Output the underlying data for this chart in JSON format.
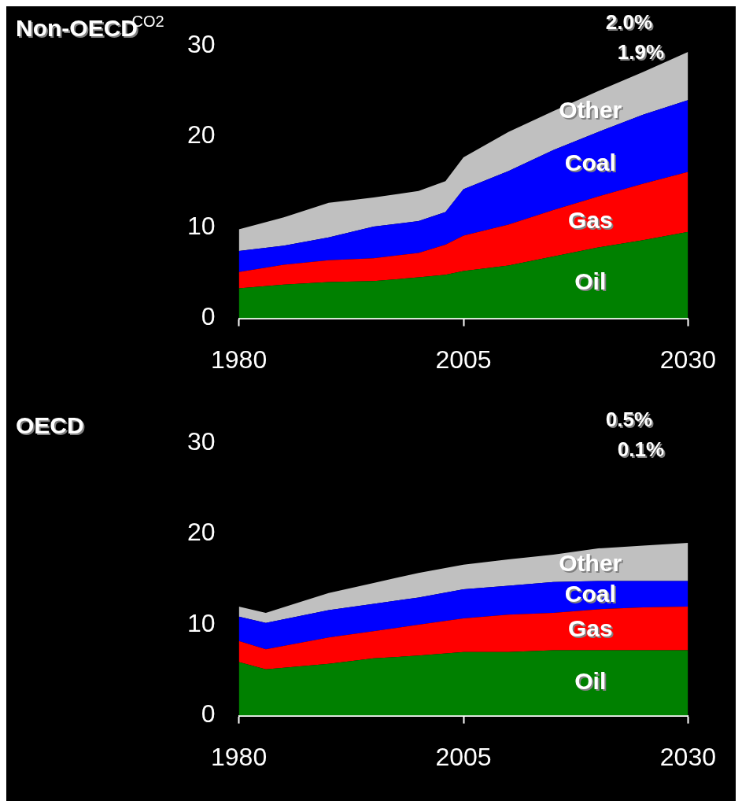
{
  "chart_data": [
    {
      "type": "area",
      "title": "Non-OECD",
      "ylabel": "CO2",
      "stacked": true,
      "x": [
        1980,
        1985,
        1990,
        1995,
        2000,
        2003,
        2005,
        2010,
        2015,
        2020,
        2025,
        2030
      ],
      "xlim": [
        1980,
        2030
      ],
      "xticks": [
        1980,
        2005,
        2030
      ],
      "ylim": [
        0,
        30
      ],
      "yticks": [
        0,
        10,
        20,
        30
      ],
      "grid": false,
      "legend": false,
      "annotations": [
        "2.0%",
        "1.9%"
      ],
      "series": [
        {
          "name": "Oil",
          "color": "#008000",
          "values": [
            3.3,
            3.7,
            4.0,
            4.1,
            4.5,
            4.8,
            5.2,
            5.8,
            6.8,
            7.8,
            8.6,
            9.5
          ]
        },
        {
          "name": "Gas",
          "color": "#ff0000",
          "values": [
            1.8,
            2.2,
            2.4,
            2.5,
            2.7,
            3.3,
            3.9,
            4.5,
            5.1,
            5.6,
            6.2,
            6.6
          ]
        },
        {
          "name": "Coal",
          "color": "#0000ff",
          "values": [
            2.3,
            2.1,
            2.5,
            3.5,
            3.5,
            3.6,
            5.1,
            5.9,
            6.6,
            7.1,
            7.6,
            7.9
          ]
        },
        {
          "name": "Other",
          "color": "#c0c0c0",
          "values": [
            2.4,
            3.1,
            3.8,
            3.2,
            3.3,
            3.4,
            3.5,
            4.3,
            4.3,
            4.5,
            4.7,
            5.3
          ]
        }
      ]
    },
    {
      "type": "area",
      "title": "OECD",
      "stacked": true,
      "x": [
        1980,
        1983,
        1990,
        1995,
        2000,
        2005,
        2010,
        2015,
        2020,
        2025,
        2030
      ],
      "xlim": [
        1980,
        2030
      ],
      "xticks": [
        1980,
        2005,
        2030
      ],
      "ylim": [
        0,
        30
      ],
      "yticks": [
        0,
        10,
        20,
        30
      ],
      "grid": false,
      "legend": false,
      "annotations": [
        "0.5%",
        "0.1%"
      ],
      "series": [
        {
          "name": "Oil",
          "color": "#008000",
          "values": [
            5.9,
            5.1,
            5.7,
            6.3,
            6.6,
            7.0,
            7.0,
            7.2,
            7.2,
            7.2,
            7.2
          ]
        },
        {
          "name": "Gas",
          "color": "#ff0000",
          "values": [
            2.3,
            2.2,
            2.9,
            3.0,
            3.4,
            3.7,
            4.1,
            4.1,
            4.5,
            4.7,
            4.8
          ]
        },
        {
          "name": "Coal",
          "color": "#0000ff",
          "values": [
            2.7,
            2.9,
            3.0,
            3.0,
            3.0,
            3.2,
            3.2,
            3.4,
            3.1,
            2.9,
            2.8
          ]
        },
        {
          "name": "Other",
          "color": "#c0c0c0",
          "values": [
            1.1,
            1.1,
            1.9,
            2.3,
            2.7,
            2.7,
            2.9,
            3.0,
            3.6,
            3.9,
            4.2
          ]
        }
      ]
    }
  ]
}
